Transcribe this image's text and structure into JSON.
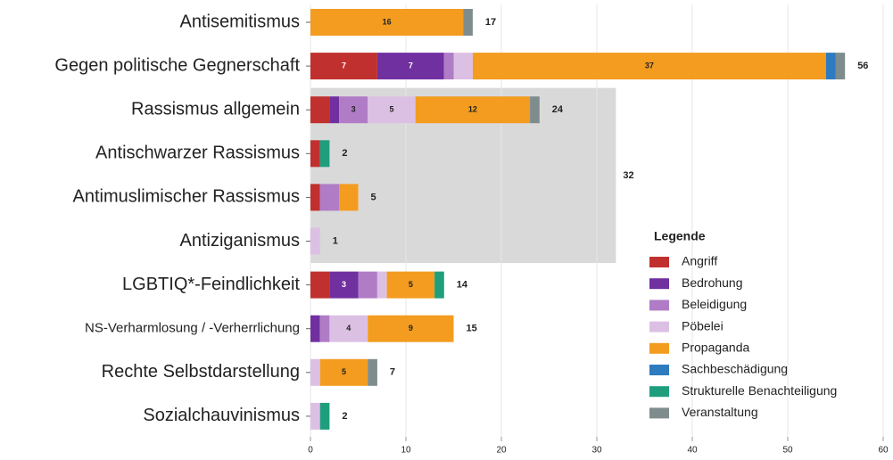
{
  "chart_data": {
    "type": "stacked-bar-horizontal",
    "categories": [
      "Antisemitismus",
      "Gegen politische Gegnerschaft",
      "Rassismus allgemein",
      "Antischwarzer Rassismus",
      "Antimuslimischer Rassismus",
      "Antiziganismus",
      "LGBTIQ*-Feindlichkeit",
      "NS-Verharmlosung / -Verherrlichung",
      "Rechte Selbstdarstellung",
      "Sozialchauvinismus"
    ],
    "series": [
      {
        "name": "Angriff",
        "color": "#c0302e",
        "values": [
          0,
          7,
          2,
          1,
          1,
          0,
          2,
          0,
          0,
          0
        ]
      },
      {
        "name": "Bedrohung",
        "color": "#7030a0",
        "values": [
          0,
          7,
          1,
          0,
          0,
          0,
          3,
          1,
          0,
          0
        ]
      },
      {
        "name": "Beleidigung",
        "color": "#b07cc6",
        "values": [
          0,
          1,
          3,
          0,
          2,
          0,
          2,
          1,
          0,
          0
        ]
      },
      {
        "name": "Pöbelei",
        "color": "#dcc0e4",
        "values": [
          0,
          2,
          5,
          0,
          0,
          1,
          1,
          4,
          1,
          1
        ]
      },
      {
        "name": "Propaganda",
        "color": "#f39c1f",
        "values": [
          16,
          37,
          12,
          0,
          2,
          0,
          5,
          9,
          5,
          0
        ]
      },
      {
        "name": "Sachbeschädigung",
        "color": "#2e7bbf",
        "values": [
          0,
          1,
          0,
          0,
          0,
          0,
          0,
          0,
          0,
          0
        ]
      },
      {
        "name": "Strukturelle Benachteiligung",
        "color": "#1f9e7e",
        "values": [
          0,
          0,
          0,
          1,
          0,
          0,
          1,
          0,
          0,
          1
        ]
      },
      {
        "name": "Veranstaltung",
        "color": "#7f8c8d",
        "values": [
          1,
          1,
          1,
          0,
          0,
          0,
          0,
          0,
          1,
          0
        ]
      }
    ],
    "totals": [
      17,
      56,
      24,
      2,
      5,
      1,
      14,
      15,
      7,
      2
    ],
    "highlight": {
      "value": 32,
      "from": "Rassismus allgemein",
      "to": "Antiziganismus"
    },
    "legend_title": "Legende",
    "xlim": [
      0,
      60
    ],
    "xticks": [
      0,
      10,
      20,
      30,
      40,
      50,
      60
    ],
    "grid": true
  }
}
